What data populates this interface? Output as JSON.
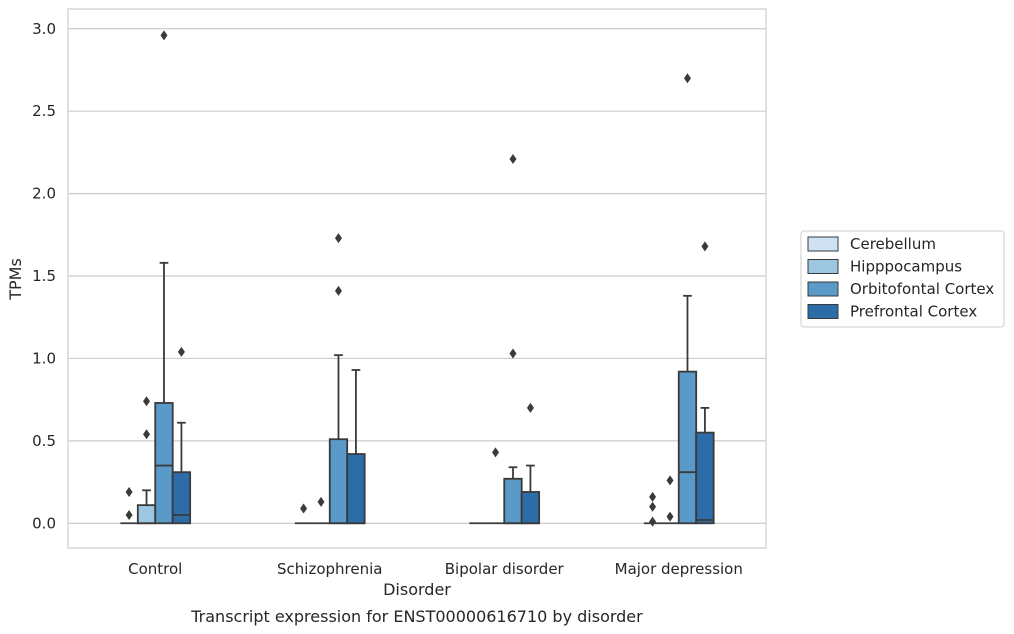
{
  "chart_data": {
    "type": "box",
    "title": "",
    "caption": "Transcript expression for ENST00000616710 by disorder",
    "xlabel": "Disorder",
    "ylabel": "TPMs",
    "ylim": [
      -0.15,
      3.12
    ],
    "yticks": [
      "0.0",
      "0.5",
      "1.0",
      "1.5",
      "2.0",
      "2.5",
      "3.0"
    ],
    "grid": "horizontal",
    "legend_position": "right",
    "categories": [
      "Control",
      "Schizophrenia",
      "Bipolar disorder",
      "Major depression"
    ],
    "series": [
      {
        "name": "Cerebellum",
        "color": "#d0e2f2",
        "boxes": [
          {
            "q1": 0,
            "median": 0,
            "q3": 0,
            "whisker_low": 0,
            "whisker_high": 0,
            "outliers": [
              0.05,
              0.19
            ]
          },
          {
            "q1": 0,
            "median": 0,
            "q3": 0,
            "whisker_low": 0,
            "whisker_high": 0,
            "outliers": [
              0.09
            ]
          },
          {
            "q1": 0,
            "median": 0,
            "q3": 0,
            "whisker_low": 0,
            "whisker_high": 0,
            "outliers": []
          },
          {
            "q1": 0,
            "median": 0,
            "q3": 0,
            "whisker_low": 0,
            "whisker_high": 0,
            "outliers": [
              0.01,
              0.1,
              0.16
            ]
          }
        ]
      },
      {
        "name": "Hipppocampus",
        "color": "#9dc6e0",
        "boxes": [
          {
            "q1": 0,
            "median": 0,
            "q3": 0.11,
            "whisker_low": 0,
            "whisker_high": 0.2,
            "outliers": [
              0.54,
              0.74
            ]
          },
          {
            "q1": 0,
            "median": 0,
            "q3": 0,
            "whisker_low": 0,
            "whisker_high": 0,
            "outliers": [
              0.13
            ]
          },
          {
            "q1": 0,
            "median": 0,
            "q3": 0,
            "whisker_low": 0,
            "whisker_high": 0,
            "outliers": [
              0.43
            ]
          },
          {
            "q1": 0,
            "median": 0,
            "q3": 0,
            "whisker_low": 0,
            "whisker_high": 0,
            "outliers": [
              0.04,
              0.26
            ]
          }
        ]
      },
      {
        "name": "Orbitofontal Cortex",
        "color": "#5a9ac8",
        "boxes": [
          {
            "q1": 0,
            "median": 0.35,
            "q3": 0.73,
            "whisker_low": 0,
            "whisker_high": 1.58,
            "outliers": [
              2.96
            ]
          },
          {
            "q1": 0,
            "median": 0,
            "q3": 0.51,
            "whisker_low": 0,
            "whisker_high": 1.02,
            "outliers": [
              1.41,
              1.73
            ]
          },
          {
            "q1": 0,
            "median": 0,
            "q3": 0.27,
            "whisker_low": 0,
            "whisker_high": 0.34,
            "outliers": [
              1.03,
              2.21
            ]
          },
          {
            "q1": 0,
            "median": 0.31,
            "q3": 0.92,
            "whisker_low": 0,
            "whisker_high": 1.38,
            "outliers": [
              2.7
            ]
          }
        ]
      },
      {
        "name": "Prefrontal Cortex",
        "color": "#2b6ca9",
        "boxes": [
          {
            "q1": 0,
            "median": 0.05,
            "q3": 0.31,
            "whisker_low": 0,
            "whisker_high": 0.61,
            "outliers": [
              1.04
            ]
          },
          {
            "q1": 0,
            "median": 0,
            "q3": 0.42,
            "whisker_low": 0,
            "whisker_high": 0.93,
            "outliers": []
          },
          {
            "q1": 0,
            "median": 0,
            "q3": 0.19,
            "whisker_low": 0,
            "whisker_high": 0.35,
            "outliers": [
              0.7
            ]
          },
          {
            "q1": 0,
            "median": 0.02,
            "q3": 0.55,
            "whisker_low": 0,
            "whisker_high": 0.7,
            "outliers": [
              1.68
            ]
          }
        ]
      }
    ]
  }
}
